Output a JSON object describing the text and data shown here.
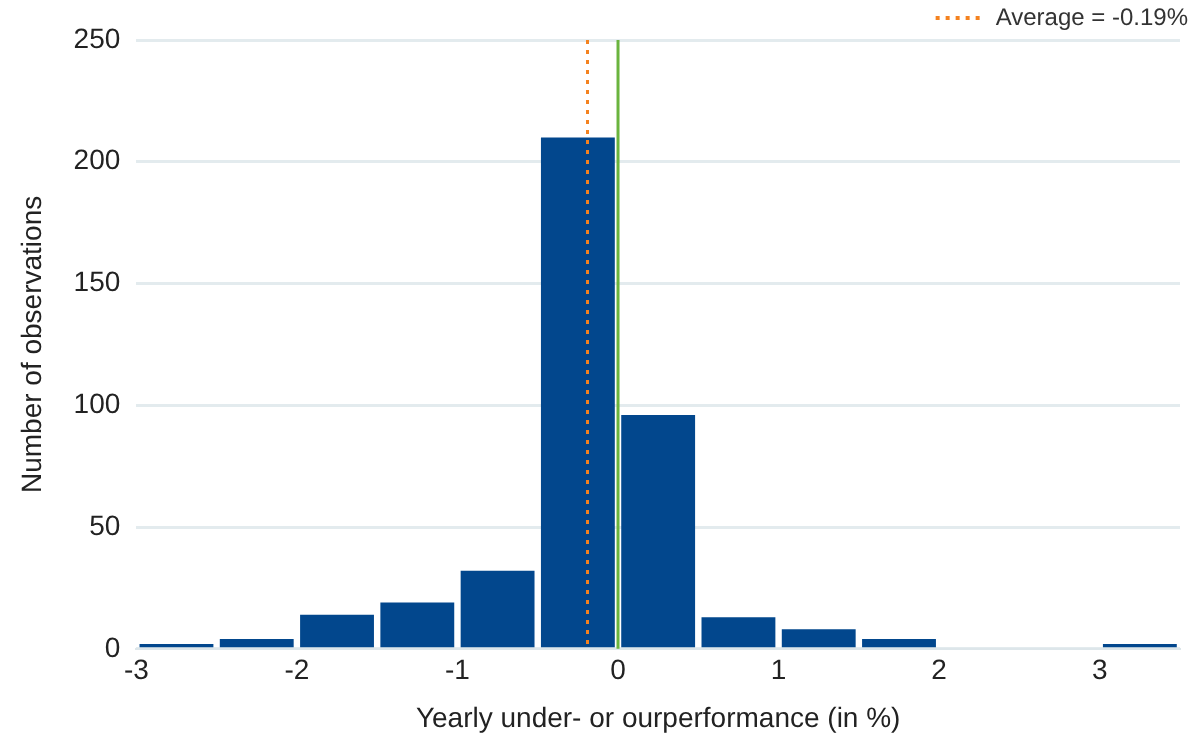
{
  "chart_data": {
    "type": "histogram",
    "xlabel": "Yearly under- or ourperformance (in %)",
    "ylabel": "Number of observations",
    "bins": [
      -3,
      -2.5,
      -2,
      -1.5,
      -1,
      -0.5,
      0,
      0.5,
      1,
      1.5,
      2,
      2.5,
      3,
      3.5
    ],
    "values": [
      2,
      4,
      14,
      19,
      32,
      210,
      96,
      13,
      8,
      4,
      0,
      0,
      2
    ],
    "color": "#02478d",
    "xlim": [
      -3,
      3.5
    ],
    "xticks": [
      -3,
      -2,
      -1,
      0,
      1,
      2,
      3
    ],
    "ylim": [
      0,
      250
    ],
    "yticks": [
      0,
      50,
      100,
      150,
      200,
      250
    ],
    "grid": "y",
    "legend": "top right",
    "ref_lines": [
      {
        "axis": "x",
        "value": -0.19,
        "label": "Average = -0.19%",
        "color": "#f4821f",
        "line_style": "dotted"
      },
      {
        "axis": "x",
        "value": 0,
        "color": "#6ab43e",
        "line_style": "solid"
      }
    ]
  }
}
